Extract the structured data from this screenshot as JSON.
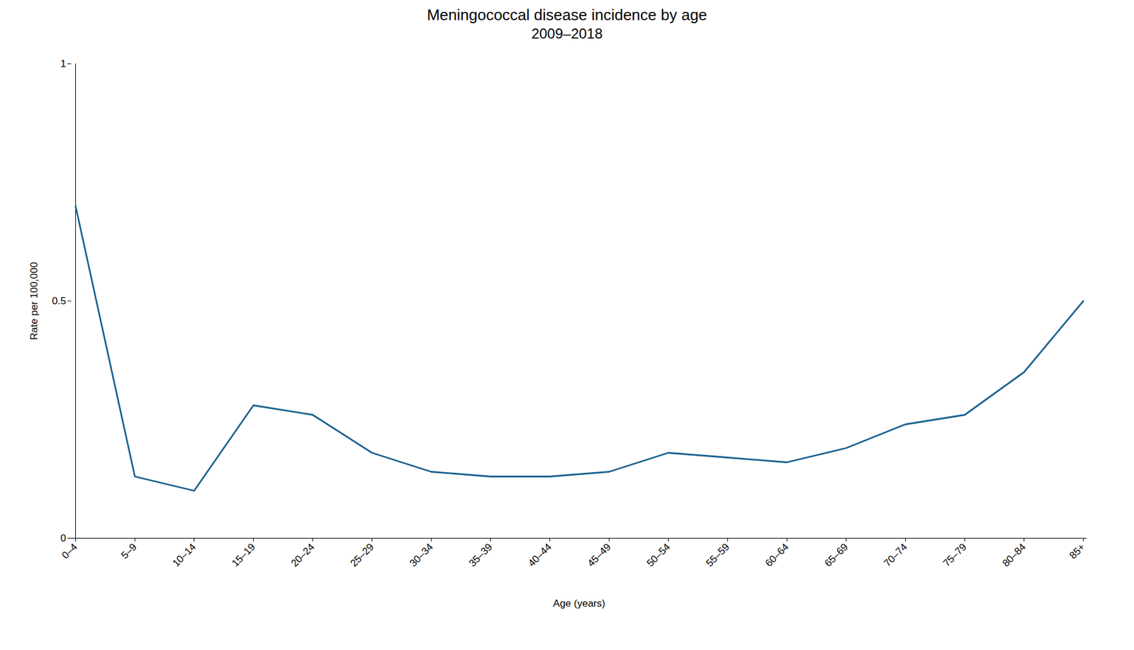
{
  "chart_data": {
    "type": "line",
    "title": "Meningococcal disease incidence by age",
    "subtitle": "2009–2018",
    "xlabel": "Age (years)",
    "ylabel": "Rate per 100,000",
    "color": "#1a6190",
    "grid": false,
    "ylim": [
      0,
      1.0
    ],
    "yticks": [
      0,
      0.5,
      1
    ],
    "categories": [
      "0–4",
      "5–9",
      "10–14",
      "15–19",
      "20–24",
      "25–29",
      "30–34",
      "35–39",
      "40–44",
      "45–49",
      "50–54",
      "55–59",
      "60–64",
      "65–69",
      "70–74",
      "75–79",
      "80–84",
      "85+"
    ],
    "values": [
      0.7,
      0.13,
      0.1,
      0.28,
      0.26,
      0.18,
      0.14,
      0.13,
      0.13,
      0.14,
      0.18,
      0.17,
      0.16,
      0.19,
      0.24,
      0.26,
      0.35,
      0.5
    ]
  }
}
